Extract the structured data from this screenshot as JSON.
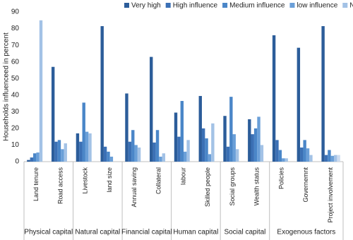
{
  "chart_data": {
    "type": "bar",
    "y_label": "Households influenceed in percent",
    "categories": [
      "Land tenure",
      "Road access",
      "Livestock",
      "land size",
      "Annual saving",
      "Collateral",
      "labour",
      "Skilled people",
      "Social groups",
      "Wealth status",
      "Policies",
      "Governemnt",
      "Project involvement"
    ],
    "groups": [
      "Physical capital",
      "Physical capital",
      "Natural capital",
      "Natural capital",
      "Financial capital",
      "Financial capital",
      "Human capital",
      "Human capital",
      "Social capital",
      "Social capital",
      "Exogenous factors",
      "Exogenous factors",
      "Exogenous factors"
    ],
    "series": [
      {
        "name": "Very high",
        "color": "#2c5d9a",
        "values": [
          1,
          57,
          17,
          81.5,
          41,
          63,
          29.5,
          39.5,
          27.5,
          25.5,
          76,
          68.5,
          81.5
        ]
      },
      {
        "name": "High influence",
        "color": "#3b70b5",
        "values": [
          2.5,
          12,
          12,
          9,
          12,
          11.5,
          15,
          20,
          9,
          16.5,
          13,
          8.5,
          4
        ]
      },
      {
        "name": "Medium influence",
        "color": "#4a86c8",
        "values": [
          5,
          13,
          35.5,
          6,
          19,
          19,
          36.5,
          14,
          39,
          20,
          7,
          13,
          7
        ]
      },
      {
        "name": "low influence",
        "color": "#6a9fd8",
        "values": [
          5.5,
          7.5,
          18,
          3,
          10,
          3,
          6,
          4.5,
          16.5,
          27,
          2,
          8,
          3.5
        ]
      },
      {
        "name": "No influence",
        "color": "#a3c2e6",
        "values": [
          85,
          11,
          17,
          0,
          8.5,
          5,
          13,
          23,
          7.5,
          10,
          2,
          4,
          4
        ]
      },
      {
        "color": "#cddcf0",
        "values": [
          0,
          0,
          0,
          0,
          0,
          0,
          0,
          0,
          0,
          0,
          0,
          0,
          4
        ]
      }
    ],
    "ylim": [
      0,
      90
    ],
    "yticks": [
      0,
      10,
      20,
      30,
      40,
      50,
      60,
      70,
      80,
      90
    ],
    "legend": "top-right"
  }
}
